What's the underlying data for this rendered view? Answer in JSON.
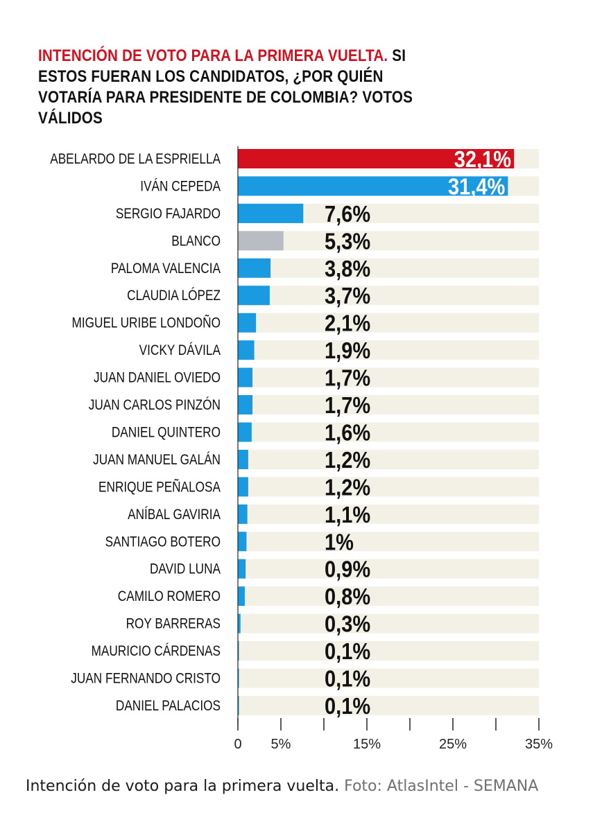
{
  "title": {
    "highlight": "INTENCIÓN DE VOTO PARA LA PRIMERA VUELTA.",
    "rest": "SI ESTOS FUERAN LOS CANDIDATOS, ¿POR QUIÉN VOTARÍA PARA PRESIDENTE DE COLOMBIA? VOTOS VÁLIDOS"
  },
  "caption": {
    "text": "Intención de voto para la primera vuelta.",
    "credit": "Foto: AtlasIntel - SEMANA"
  },
  "colors": {
    "highlight": "#d4101e",
    "bar_default": "#1a9ae0",
    "bar_blank": "#b9bcc3",
    "track": "#f3f0e6"
  },
  "chart_data": {
    "type": "bar",
    "orientation": "horizontal",
    "categories": [
      "ABELARDO DE LA ESPRIELLA",
      "IVÁN CEPEDA",
      "SERGIO FAJARDO",
      "BLANCO",
      "PALOMA VALENCIA",
      "CLAUDIA LÓPEZ",
      "MIGUEL URIBE LONDOÑO",
      "VICKY DÁVILA",
      "JUAN DANIEL OVIEDO",
      "JUAN CARLOS PINZÓN",
      "DANIEL QUINTERO",
      "JUAN MANUEL GALÁN",
      "ENRIQUE PEÑALOSA",
      "ANÍBAL GAVIRIA",
      "SANTIAGO BOTERO",
      "DAVID LUNA",
      "CAMILO ROMERO",
      "ROY BARRERAS",
      "MAURICIO CÁRDENAS",
      "JUAN FERNANDO CRISTO",
      "DANIEL PALACIOS"
    ],
    "values": [
      32.1,
      31.4,
      7.6,
      5.3,
      3.8,
      3.7,
      2.1,
      1.9,
      1.7,
      1.7,
      1.6,
      1.2,
      1.2,
      1.1,
      1,
      0.9,
      0.8,
      0.3,
      0.1,
      0.1,
      0.1
    ],
    "value_labels": [
      "32,1%",
      "31,4%",
      "7,6%",
      "5,3%",
      "3,8%",
      "3,7%",
      "2,1%",
      "1,9%",
      "1,7%",
      "1,7%",
      "1,6%",
      "1,2%",
      "1,2%",
      "1,1%",
      "1%",
      "0,9%",
      "0,8%",
      "0,3%",
      "0,1%",
      "0,1%",
      "0,1%"
    ],
    "bar_colors": [
      "#d4101e",
      "#1a9ae0",
      "#1a9ae0",
      "#b9bcc3",
      "#1a9ae0",
      "#1a9ae0",
      "#1a9ae0",
      "#1a9ae0",
      "#1a9ae0",
      "#1a9ae0",
      "#1a9ae0",
      "#1a9ae0",
      "#1a9ae0",
      "#1a9ae0",
      "#1a9ae0",
      "#1a9ae0",
      "#1a9ae0",
      "#1a9ae0",
      "#1a9ae0",
      "#1a9ae0",
      "#1a9ae0"
    ],
    "xlim": [
      0,
      35
    ],
    "xticks": [
      0,
      5,
      10,
      15,
      20,
      25,
      30,
      35
    ],
    "xtick_labels": [
      "0",
      "5%",
      "",
      "15%",
      "",
      "25%",
      "",
      "35%"
    ],
    "grid": false,
    "legend": "none",
    "title": "INTENCIÓN DE VOTO PARA LA PRIMERA VUELTA. SI ESTOS FUERAN LOS CANDIDATOS, ¿POR QUIÉN VOTARÍA PARA PRESIDENTE DE COLOMBIA? VOTOS VÁLIDOS",
    "xlabel": "",
    "ylabel": ""
  }
}
